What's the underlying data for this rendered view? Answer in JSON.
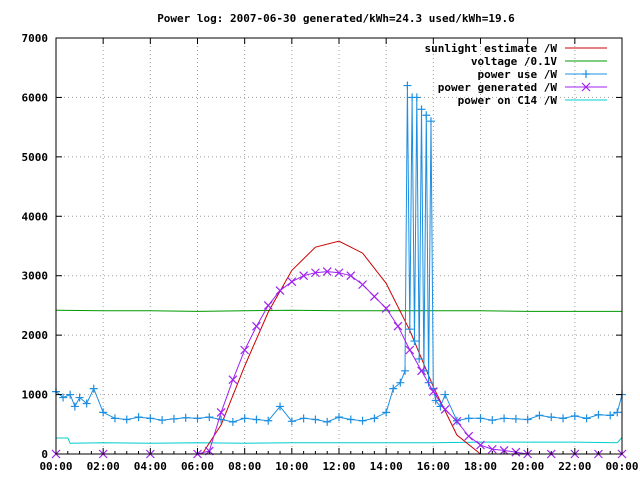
{
  "chart_data": {
    "type": "line",
    "title": "Power log: 2007-06-30 generated/kWh=24.3 used/kWh=19.6",
    "xlabel": "",
    "ylabel": "",
    "xlim": [
      0,
      24
    ],
    "ylim": [
      0,
      7000
    ],
    "x_tick_labels": [
      "00:00",
      "02:00",
      "04:00",
      "06:00",
      "08:00",
      "10:00",
      "12:00",
      "14:00",
      "16:00",
      "18:00",
      "20:00",
      "22:00",
      "00:00"
    ],
    "y_tick_labels": [
      "0",
      "1000",
      "2000",
      "3000",
      "4000",
      "5000",
      "6000",
      "7000"
    ],
    "y_ticks": [
      0,
      1000,
      2000,
      3000,
      4000,
      5000,
      6000,
      7000
    ],
    "grid": true,
    "legend_position": "top-right",
    "series": [
      {
        "name": "sunlight estimate /W",
        "color": "#cc0000",
        "style": "line",
        "x": [
          6.2,
          7.0,
          8.0,
          9.0,
          10.0,
          11.0,
          12.0,
          13.0,
          14.0,
          15.0,
          16.0,
          17.0,
          18.0
        ],
        "y": [
          0,
          490,
          1480,
          2390,
          3090,
          3480,
          3580,
          3380,
          2870,
          2080,
          1130,
          320,
          0
        ]
      },
      {
        "name": "voltage /0.1V",
        "color": "#009900",
        "style": "line",
        "x": [
          0.0,
          2.0,
          4.0,
          6.0,
          8.0,
          10.0,
          12.0,
          14.0,
          16.0,
          18.0,
          20.0,
          22.0,
          24.0
        ],
        "y": [
          2420,
          2410,
          2410,
          2400,
          2410,
          2420,
          2410,
          2410,
          2410,
          2410,
          2400,
          2400,
          2400
        ]
      },
      {
        "name": "power use /W",
        "color": "#1e8fe0",
        "style": "linespoints-plus",
        "x": [
          0.0,
          0.3,
          0.6,
          0.8,
          1.0,
          1.3,
          1.6,
          2.0,
          2.5,
          3.0,
          3.5,
          4.0,
          4.5,
          5.0,
          5.5,
          6.0,
          6.5,
          7.0,
          7.5,
          8.0,
          8.5,
          9.0,
          9.5,
          10.0,
          10.5,
          11.0,
          11.5,
          12.0,
          12.5,
          13.0,
          13.5,
          14.0,
          14.3,
          14.6,
          14.8,
          14.9,
          15.0,
          15.1,
          15.2,
          15.3,
          15.4,
          15.5,
          15.6,
          15.7,
          15.8,
          15.9,
          16.0,
          16.1,
          16.3,
          16.5,
          17.0,
          17.5,
          18.0,
          18.5,
          19.0,
          19.5,
          20.0,
          20.5,
          21.0,
          21.5,
          22.0,
          22.5,
          23.0,
          23.5,
          23.8,
          24.0
        ],
        "y": [
          1050,
          950,
          1000,
          800,
          950,
          850,
          1100,
          700,
          600,
          580,
          620,
          600,
          570,
          590,
          610,
          600,
          620,
          580,
          540,
          600,
          580,
          560,
          800,
          550,
          600,
          580,
          540,
          620,
          580,
          560,
          600,
          700,
          1100,
          1200,
          1400,
          6200,
          2100,
          6000,
          1900,
          6000,
          1600,
          5800,
          1400,
          5700,
          1200,
          5600,
          1100,
          900,
          800,
          1000,
          560,
          600,
          600,
          570,
          600,
          590,
          580,
          650,
          620,
          600,
          640,
          600,
          660,
          650,
          700,
          1000
        ]
      },
      {
        "name": "power generated /W",
        "color": "#a020f0",
        "style": "linespoints-x",
        "x": [
          0.0,
          2.0,
          4.0,
          6.0,
          6.5,
          7.0,
          7.5,
          8.0,
          8.5,
          9.0,
          9.5,
          10.0,
          10.5,
          11.0,
          11.5,
          12.0,
          12.5,
          13.0,
          13.5,
          14.0,
          14.5,
          15.0,
          15.5,
          16.0,
          16.5,
          17.0,
          17.5,
          18.0,
          18.5,
          19.0,
          19.5,
          20.0,
          21.0,
          22.0,
          23.0,
          24.0
        ],
        "y": [
          0,
          0,
          0,
          0,
          50,
          700,
          1250,
          1750,
          2150,
          2500,
          2750,
          2900,
          3000,
          3050,
          3070,
          3050,
          3000,
          2850,
          2650,
          2450,
          2150,
          1750,
          1400,
          1050,
          750,
          550,
          300,
          150,
          80,
          60,
          30,
          0,
          0,
          0,
          0,
          0
        ]
      },
      {
        "name": "power on C14 /W",
        "color": "#00cccc",
        "style": "line",
        "x": [
          0.0,
          0.5,
          0.6,
          2.0,
          4.0,
          6.0,
          8.0,
          10.0,
          12.0,
          14.0,
          16.0,
          18.0,
          20.0,
          22.0,
          23.8,
          24.0
        ],
        "y": [
          270,
          270,
          180,
          190,
          180,
          190,
          180,
          190,
          190,
          190,
          190,
          200,
          200,
          200,
          190,
          280
        ]
      }
    ]
  }
}
